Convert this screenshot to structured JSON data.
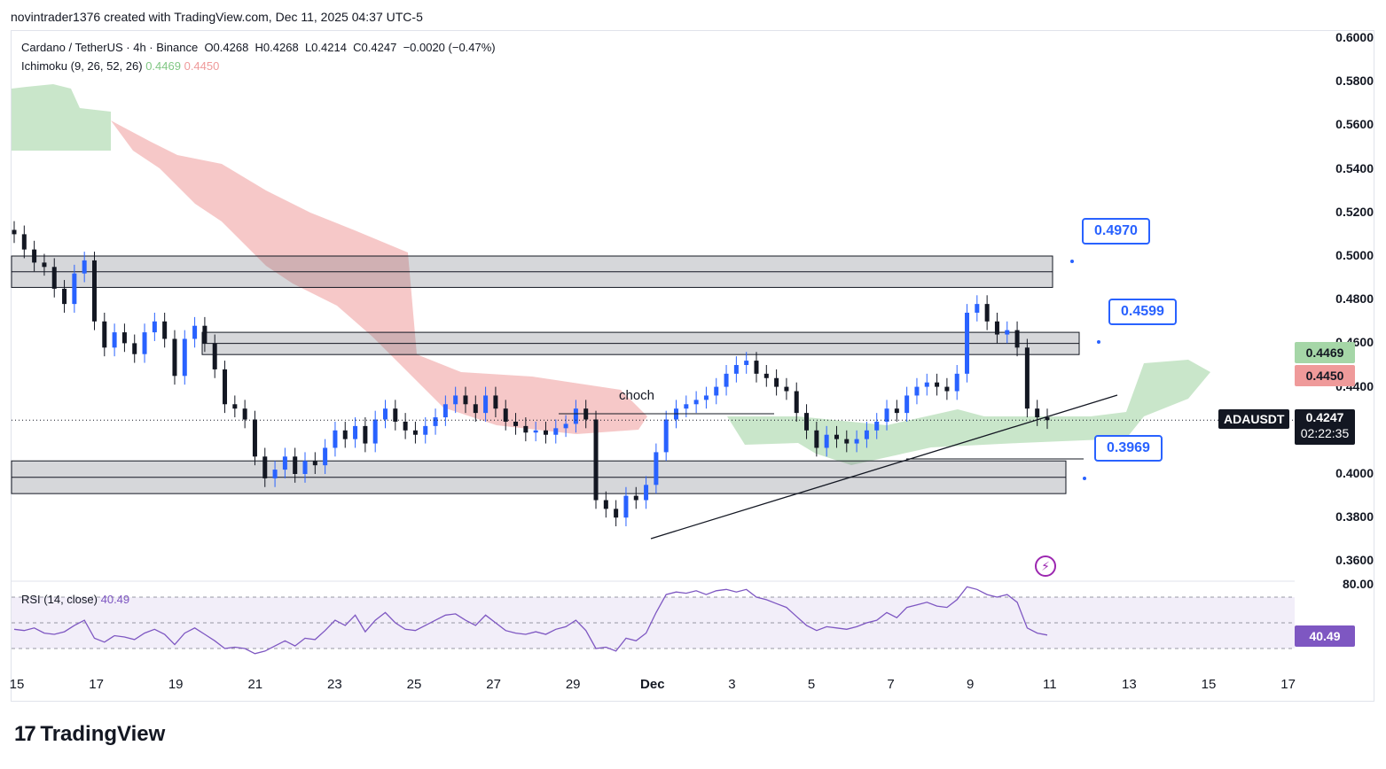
{
  "header": "novintrader1376 created with TradingView.com, Dec 11, 2025 04:37 UTC-5",
  "legend": {
    "symbol_line": "Cardano / TetherUS · 4h · Binance",
    "o": "O0.4268",
    "h": "H0.4268",
    "l": "L0.4214",
    "c": "C0.4247",
    "chg": "−0.0020 (−0.47%)",
    "ichimoku": "Ichimoku (9, 26, 52, 26)",
    "ichi_a": "0.4469",
    "ichi_b": "0.4450"
  },
  "rsi": {
    "label": "RSI (14, close)",
    "value": "40.49"
  },
  "price_axis": [
    "0.6000",
    "0.5800",
    "0.5600",
    "0.5400",
    "0.5200",
    "0.5000",
    "0.4800",
    "0.4600",
    "0.4400",
    "0.4000",
    "0.3800",
    "0.3600"
  ],
  "rsi_axis_top": "80.00",
  "tags": {
    "a": "0.4469",
    "b": "0.4450",
    "last": "0.4247",
    "countdown": "02:22:35",
    "rsi": "40.49",
    "symbol": "ADAUSDT"
  },
  "callouts": {
    "c1": "0.4970",
    "c2": "0.4599",
    "c3": "0.3969"
  },
  "annotation": "choch",
  "x_ticks": [
    "15",
    "17",
    "19",
    "21",
    "23",
    "25",
    "27",
    "29",
    "Dec",
    "3",
    "5",
    "7",
    "9",
    "11",
    "13",
    "15",
    "17"
  ],
  "footer": "TradingView",
  "colors": {
    "up": "#2962ff",
    "down": "#131722",
    "cloud_green": "#a5d6a7",
    "cloud_red": "#ef9a9a",
    "rsi": "#7e57c2"
  },
  "chart_data": {
    "type": "candlestick",
    "title": "Cardano / TetherUS · 4h · Binance",
    "ylim": [
      0.35,
      0.605
    ],
    "zones": [
      [
        0.4856,
        0.5
      ],
      [
        0.4548,
        0.465
      ],
      [
        0.391,
        0.406
      ]
    ],
    "rsi_band": [
      30,
      70
    ],
    "closes": [
      0.51,
      0.503,
      0.497,
      0.495,
      0.485,
      0.478,
      0.492,
      0.498,
      0.47,
      0.458,
      0.465,
      0.46,
      0.455,
      0.465,
      0.47,
      0.462,
      0.445,
      0.462,
      0.468,
      0.46,
      0.448,
      0.432,
      0.43,
      0.425,
      0.408,
      0.398,
      0.402,
      0.408,
      0.4,
      0.406,
      0.404,
      0.412,
      0.42,
      0.416,
      0.422,
      0.414,
      0.425,
      0.43,
      0.424,
      0.42,
      0.418,
      0.422,
      0.426,
      0.432,
      0.436,
      0.432,
      0.428,
      0.436,
      0.43,
      0.424,
      0.422,
      0.419,
      0.42,
      0.418,
      0.421,
      0.423,
      0.43,
      0.425,
      0.388,
      0.384,
      0.38,
      0.39,
      0.388,
      0.395,
      0.41,
      0.425,
      0.43,
      0.432,
      0.434,
      0.436,
      0.44,
      0.446,
      0.45,
      0.452,
      0.446,
      0.444,
      0.44,
      0.438,
      0.428,
      0.42,
      0.412,
      0.418,
      0.416,
      0.414,
      0.416,
      0.42,
      0.424,
      0.43,
      0.428,
      0.436,
      0.44,
      0.442,
      0.44,
      0.438,
      0.446,
      0.474,
      0.478,
      0.47,
      0.464,
      0.466,
      0.458,
      0.43,
      0.426,
      0.4247
    ],
    "ichimoku_a_tail": [
      0.448,
      0.452,
      0.458,
      0.462,
      0.466,
      0.466,
      0.464
    ],
    "rsi_values": [
      45,
      44,
      46,
      42,
      41,
      43,
      48,
      52,
      38,
      35,
      40,
      39,
      37,
      42,
      45,
      41,
      33,
      42,
      46,
      41,
      36,
      30,
      31,
      30,
      26,
      28,
      32,
      36,
      32,
      38,
      37,
      44,
      52,
      48,
      56,
      43,
      52,
      58,
      50,
      45,
      44,
      48,
      52,
      56,
      57,
      52,
      48,
      56,
      50,
      44,
      42,
      41,
      43,
      41,
      45,
      47,
      52,
      44,
      30,
      31,
      28,
      38,
      36,
      42,
      58,
      72,
      74,
      73,
      75,
      72,
      75,
      76,
      74,
      76,
      70,
      68,
      65,
      62,
      55,
      48,
      44,
      47,
      46,
      45,
      47,
      50,
      52,
      58,
      54,
      62,
      64,
      66,
      63,
      62,
      68,
      78,
      76,
      72,
      70,
      72,
      66,
      46,
      42,
      40.49
    ]
  }
}
